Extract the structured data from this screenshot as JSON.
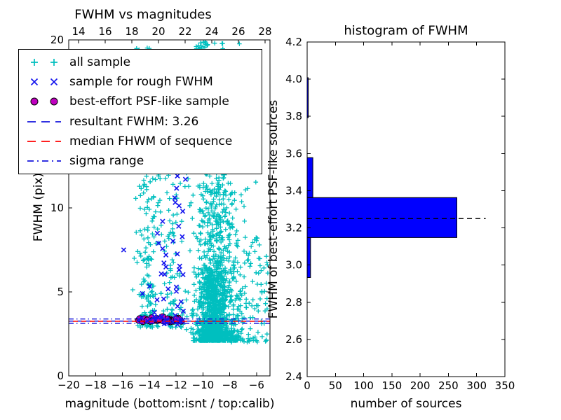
{
  "figure": {
    "background": "#ffffff"
  },
  "left_plot": {
    "title": "FWHM vs magnitudes",
    "xlabel": "magnitude (bottom:isnt / top:calib)",
    "ylabel": "FWHM (pix)",
    "tick_labels": {
      "bottom": [
        "−20",
        "−18",
        "−16",
        "−14",
        "−12",
        "−10",
        "−8",
        "−6"
      ],
      "top": [
        "14",
        "16",
        "18",
        "20",
        "22",
        "24",
        "26",
        "28"
      ],
      "y": [
        "0",
        "5",
        "10",
        "15",
        "20"
      ]
    }
  },
  "right_plot": {
    "title": "histogram of FWHM",
    "xlabel": "number of sources",
    "ylabel": "FWHM of best-effort PSF-like sources",
    "tick_labels": {
      "x": [
        "0",
        "50",
        "100",
        "150",
        "200",
        "250",
        "300",
        "350"
      ],
      "y": [
        "2.4",
        "2.6",
        "2.8",
        "3.0",
        "3.2",
        "3.4",
        "3.6",
        "3.8",
        "4.0",
        "4.2"
      ]
    }
  },
  "legend": {
    "entries": [
      {
        "marker": "plus",
        "color": "#00bfbf",
        "label": "all sample"
      },
      {
        "marker": "cross",
        "color": "#1414ee",
        "label": "sample for rough FWHM"
      },
      {
        "marker": "circle",
        "color": "#bf00bf",
        "edge": "#000000",
        "label": "best-effort PSF-like sample"
      },
      {
        "marker": "dashed",
        "color": "#1414dd",
        "label": "resultant FWHM: 3.26"
      },
      {
        "marker": "dashed",
        "color": "#ff0000",
        "label": "median FHWM of sequence"
      },
      {
        "marker": "dashdot",
        "color": "#1414dd",
        "label": "sigma range"
      }
    ]
  },
  "chart_data": [
    {
      "type": "scatter",
      "title": "FWHM vs magnitudes",
      "xlabel": "magnitude (bottom:isnt / top:calib)",
      "ylabel": "FWHM (pix)",
      "xlim": [
        -20,
        -5
      ],
      "ylim": [
        0,
        20
      ],
      "top_xlim": [
        13.26,
        28.37
      ],
      "bottom_ticks": [
        -20,
        -18,
        -16,
        -14,
        -12,
        -10,
        -8,
        -6
      ],
      "top_ticks": [
        14,
        16,
        18,
        20,
        22,
        24,
        26,
        28
      ],
      "y_ticks": [
        0,
        5,
        10,
        15,
        20
      ],
      "grid": false,
      "legend_position": "upper left",
      "seed": 20240917,
      "hlines": [
        {
          "name": "resultant-fwhm",
          "value": 3.26,
          "style": "dashed",
          "color": "#1414dd",
          "phase": 0
        },
        {
          "name": "median-fwhm",
          "value": 3.25,
          "style": "dashed",
          "color": "#ff0000",
          "phase": 6
        },
        {
          "name": "sigma-upper",
          "value": 3.39,
          "style": "dashdot",
          "color": "#1414dd",
          "phase": 0
        },
        {
          "name": "sigma-lower",
          "value": 3.13,
          "style": "dashdot",
          "color": "#1414dd",
          "phase": 0
        }
      ],
      "series": [
        {
          "name": "all sample",
          "marker": "plus",
          "color": "#00bfbf",
          "note": "dense point cloud approximated by sampled clusters",
          "clusters": [
            {
              "n": 200,
              "x": {
                "d": "n",
                "mu": -14.1,
                "s": 0.45,
                "clip": [
                  -15.35,
                  -13.2
                ]
              },
              "y": {
                "d": "p",
                "base": 2.9,
                "range": 17.0,
                "exp": 1.7,
                "max": 19.9
              }
            },
            {
              "n": 140,
              "x": {
                "d": "n",
                "mu": -12.3,
                "s": 0.5,
                "clip": [
                  -13.2,
                  -11.2
                ]
              },
              "y": {
                "d": "p",
                "base": 2.9,
                "range": 17.0,
                "exp": 1.7,
                "max": 19.9
              }
            },
            {
              "n": 1250,
              "x": {
                "d": "n",
                "mu": -9.05,
                "s": 0.85,
                "clip": [
                  -11.4,
                  -6.0
                ]
              },
              "y": {
                "d": "p",
                "base": 2.1,
                "range": 17.8,
                "exp": 2.8,
                "max": 19.9
              }
            },
            {
              "n": 420,
              "x": {
                "d": "n",
                "mu": -9.3,
                "s": 0.55,
                "clip": [
                  -10.8,
                  -7.6
                ]
              },
              "y": {
                "d": "p",
                "base": 2.25,
                "range": 4.2,
                "exp": 1.2
              }
            },
            {
              "n": 110,
              "x": {
                "d": "u",
                "lo": -7.9,
                "hi": -5.15
              },
              "y": {
                "d": "p",
                "base": 2.0,
                "range": 6.5,
                "exp": 1.8
              }
            },
            {
              "n": 16,
              "x": {
                "d": "n",
                "mu": -9.9,
                "s": 0.45,
                "clip": [
                  -10.8,
                  -8.2
                ]
              },
              "y": {
                "d": "u",
                "lo": 19.4,
                "hi": 19.9
              }
            }
          ]
        },
        {
          "name": "sample for rough FWHM",
          "marker": "cross",
          "color": "#1414ee",
          "clusters": [
            {
              "n": 11,
              "x": {
                "d": "n",
                "mu": -12.75,
                "s": 0.18
              },
              "y": {
                "d": "p",
                "base": 3.1,
                "range": 7.0,
                "exp": 1.5
              }
            },
            {
              "n": 18,
              "x": {
                "d": "n",
                "mu": -11.85,
                "s": 0.2
              },
              "y": {
                "d": "p",
                "base": 3.1,
                "range": 9.0,
                "exp": 1.4
              }
            },
            {
              "n": 8,
              "x": {
                "d": "n",
                "mu": -13.6,
                "s": 0.35
              },
              "y": {
                "d": "p",
                "base": 3.2,
                "range": 6.0,
                "exp": 1.2
              }
            },
            {
              "n": 12,
              "x": {
                "d": "u",
                "lo": -14.8,
                "hi": -11.5
              },
              "y": {
                "d": "n",
                "mu": 3.3,
                "s": 0.1
              }
            }
          ],
          "extra_points": [
            [
              -15.9,
              7.5
            ],
            [
              -14.5,
              4.9
            ],
            [
              -11.3,
              11.7
            ],
            [
              -11.9,
              11.9
            ],
            [
              -11.5,
              9.8
            ],
            [
              -13.0,
              9.2
            ],
            [
              -12.1,
              10.6
            ],
            [
              -13.3,
              7.9
            ]
          ]
        },
        {
          "name": "best-effort PSF-like sample",
          "marker": "circle",
          "color": "#bf00bf",
          "edge_color": "#000000",
          "clusters": [
            {
              "n": 34,
              "x": {
                "d": "u",
                "lo": -14.83,
                "hi": -11.45
              },
              "y": {
                "d": "n",
                "mu": 3.33,
                "s": 0.06
              }
            }
          ]
        }
      ]
    },
    {
      "type": "bar",
      "orientation": "horizontal",
      "title": "histogram of FWHM",
      "xlabel": "number of sources",
      "ylabel": "FWHM of best-effort PSF-like sources",
      "xlim": [
        0,
        350
      ],
      "ylim": [
        2.4,
        4.2
      ],
      "x_ticks": [
        0,
        50,
        100,
        150,
        200,
        250,
        300,
        350
      ],
      "y_ticks": [
        2.4,
        2.6,
        2.8,
        3.0,
        3.2,
        3.4,
        3.6,
        3.8,
        4.0,
        4.2
      ],
      "grid": false,
      "bin_edges": [
        2.933,
        3.148,
        3.363,
        3.578,
        3.793,
        4.008
      ],
      "counts": [
        6,
        265,
        10,
        0,
        2
      ],
      "bar_color": "#0000ff",
      "bar_edge_color": "#000000",
      "median_line": {
        "value": 3.25,
        "style": "dashed",
        "color": "#000000",
        "x_extent": 316
      }
    }
  ]
}
